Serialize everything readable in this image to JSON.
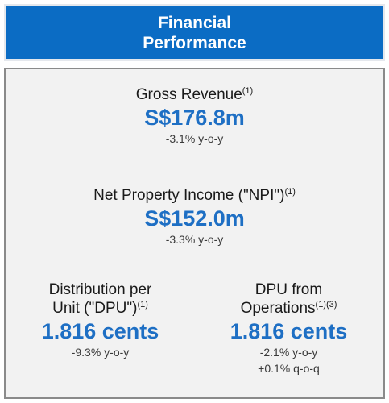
{
  "header": {
    "title_line1": "Financial",
    "title_line2": "Performance"
  },
  "gross_revenue": {
    "label": "Gross Revenue",
    "footnote": "(1)",
    "value": "S$176.8m",
    "change": "-3.1% y-o-y"
  },
  "npi": {
    "label": "Net Property Income (\"NPI\")",
    "footnote": "(1)",
    "value": "S$152.0m",
    "change": "-3.3% y-o-y"
  },
  "dpu": {
    "label_line1": "Distribution per",
    "label_line2": "Unit (\"DPU\")",
    "footnote": "(1)",
    "value": "1.816 cents",
    "change": "-9.3% y-o-y"
  },
  "dpu_operations": {
    "label_line1": "DPU from",
    "label_line2": "Operations",
    "footnote": "(1)(3)",
    "value": "1.816 cents",
    "change_yoy": "-2.1% y-o-y",
    "change_qoq": "+0.1% q-o-q"
  },
  "colors": {
    "header_bg": "#0b6cc4",
    "value_blue": "#1e6fc4",
    "panel_bg": "#f2f2f2",
    "panel_border": "#8a8a8a"
  }
}
